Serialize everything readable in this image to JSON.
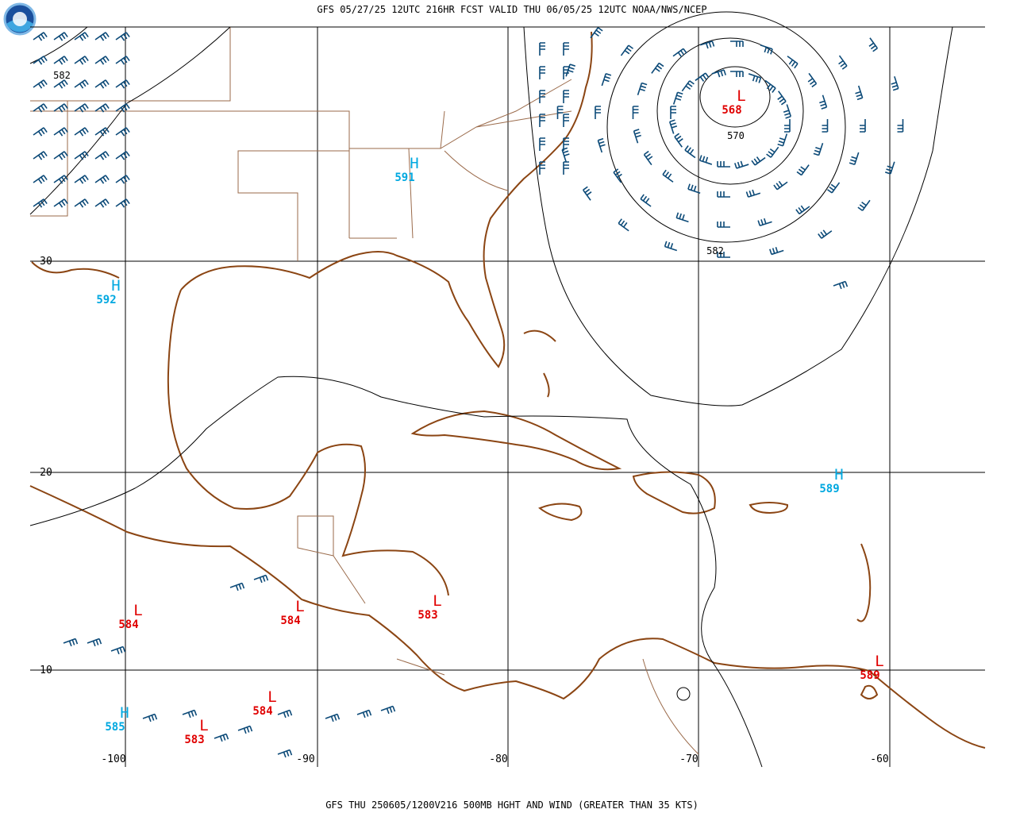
{
  "header": {
    "title": "GFS 05/27/25 12UTC 216HR FCST VALID THU 06/05/25 12UTC NOAA/NWS/NCEP"
  },
  "footer": "GFS THU 250605/1200V216 500MB HGHT AND WIND (GREATER THAN 35 KTS)",
  "longitude_labels": [
    "-100",
    "-90",
    "-80",
    "-70",
    "-60"
  ],
  "latitude_labels": [
    "30",
    "20",
    "10"
  ],
  "centers": [
    {
      "symbol": "H",
      "value": "591"
    },
    {
      "symbol": "H",
      "value": "592"
    },
    {
      "symbol": "L",
      "value": "568"
    },
    {
      "symbol": "H",
      "value": "589"
    },
    {
      "symbol": "L",
      "value": "584"
    },
    {
      "symbol": "L",
      "value": "584"
    },
    {
      "symbol": "L",
      "value": "583"
    },
    {
      "symbol": "L",
      "value": "589"
    },
    {
      "symbol": "H",
      "value": "585"
    },
    {
      "symbol": "L",
      "value": "584"
    },
    {
      "symbol": "L",
      "value": "583"
    }
  ],
  "contour_labels": [
    "582",
    "570",
    "582"
  ]
}
